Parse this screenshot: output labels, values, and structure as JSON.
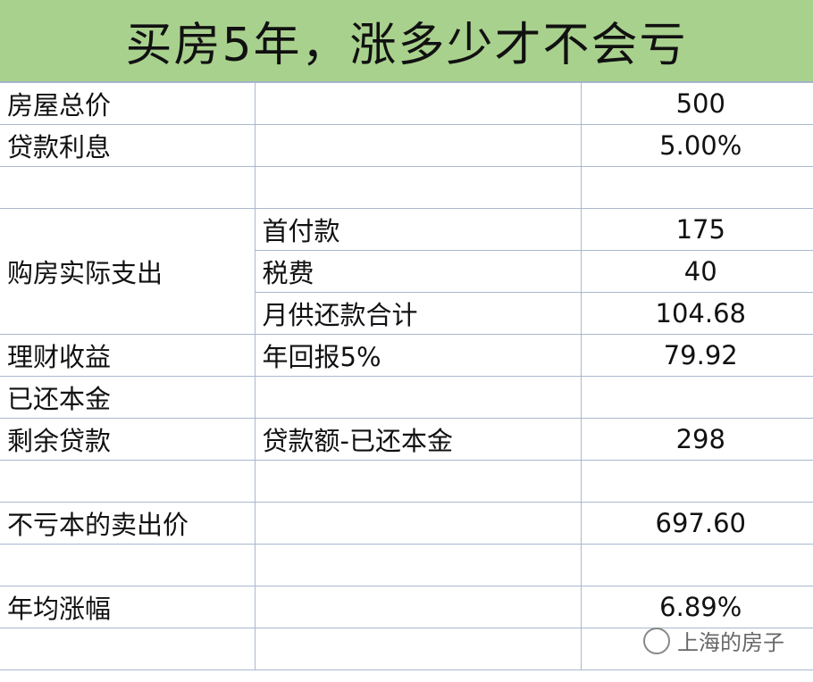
{
  "title": "买房5年，涨多少才不会亏",
  "rows": [
    {
      "label": "房屋总价",
      "sub": "",
      "value": "500"
    },
    {
      "label": "贷款利息",
      "sub": "",
      "value": "5.00%"
    },
    {
      "label": "",
      "sub": "",
      "value": ""
    },
    {
      "label": "购房实际支出",
      "sub": "首付款",
      "value": "175"
    },
    {
      "label": "",
      "sub": "税费",
      "value": "40"
    },
    {
      "label": "",
      "sub": "月供还款合计",
      "value": "104.68"
    },
    {
      "label": "理财收益",
      "sub": "年回报5%",
      "value": "79.92"
    },
    {
      "label": "已还本金",
      "sub": "",
      "value": ""
    },
    {
      "label": "剩余贷款",
      "sub": "贷款额-已还本金",
      "value": "298"
    },
    {
      "label": "",
      "sub": "",
      "value": ""
    },
    {
      "label": "不亏本的卖出价",
      "sub": "",
      "value": "697.60"
    },
    {
      "label": "",
      "sub": "",
      "value": ""
    },
    {
      "label": "年均涨幅",
      "sub": "",
      "value": "6.89%"
    },
    {
      "label": "",
      "sub": "",
      "value": ""
    }
  ],
  "watermark": "上海的房子",
  "colors": {
    "header_bg": "#a9d18e",
    "grid": "#a9b8cf"
  }
}
